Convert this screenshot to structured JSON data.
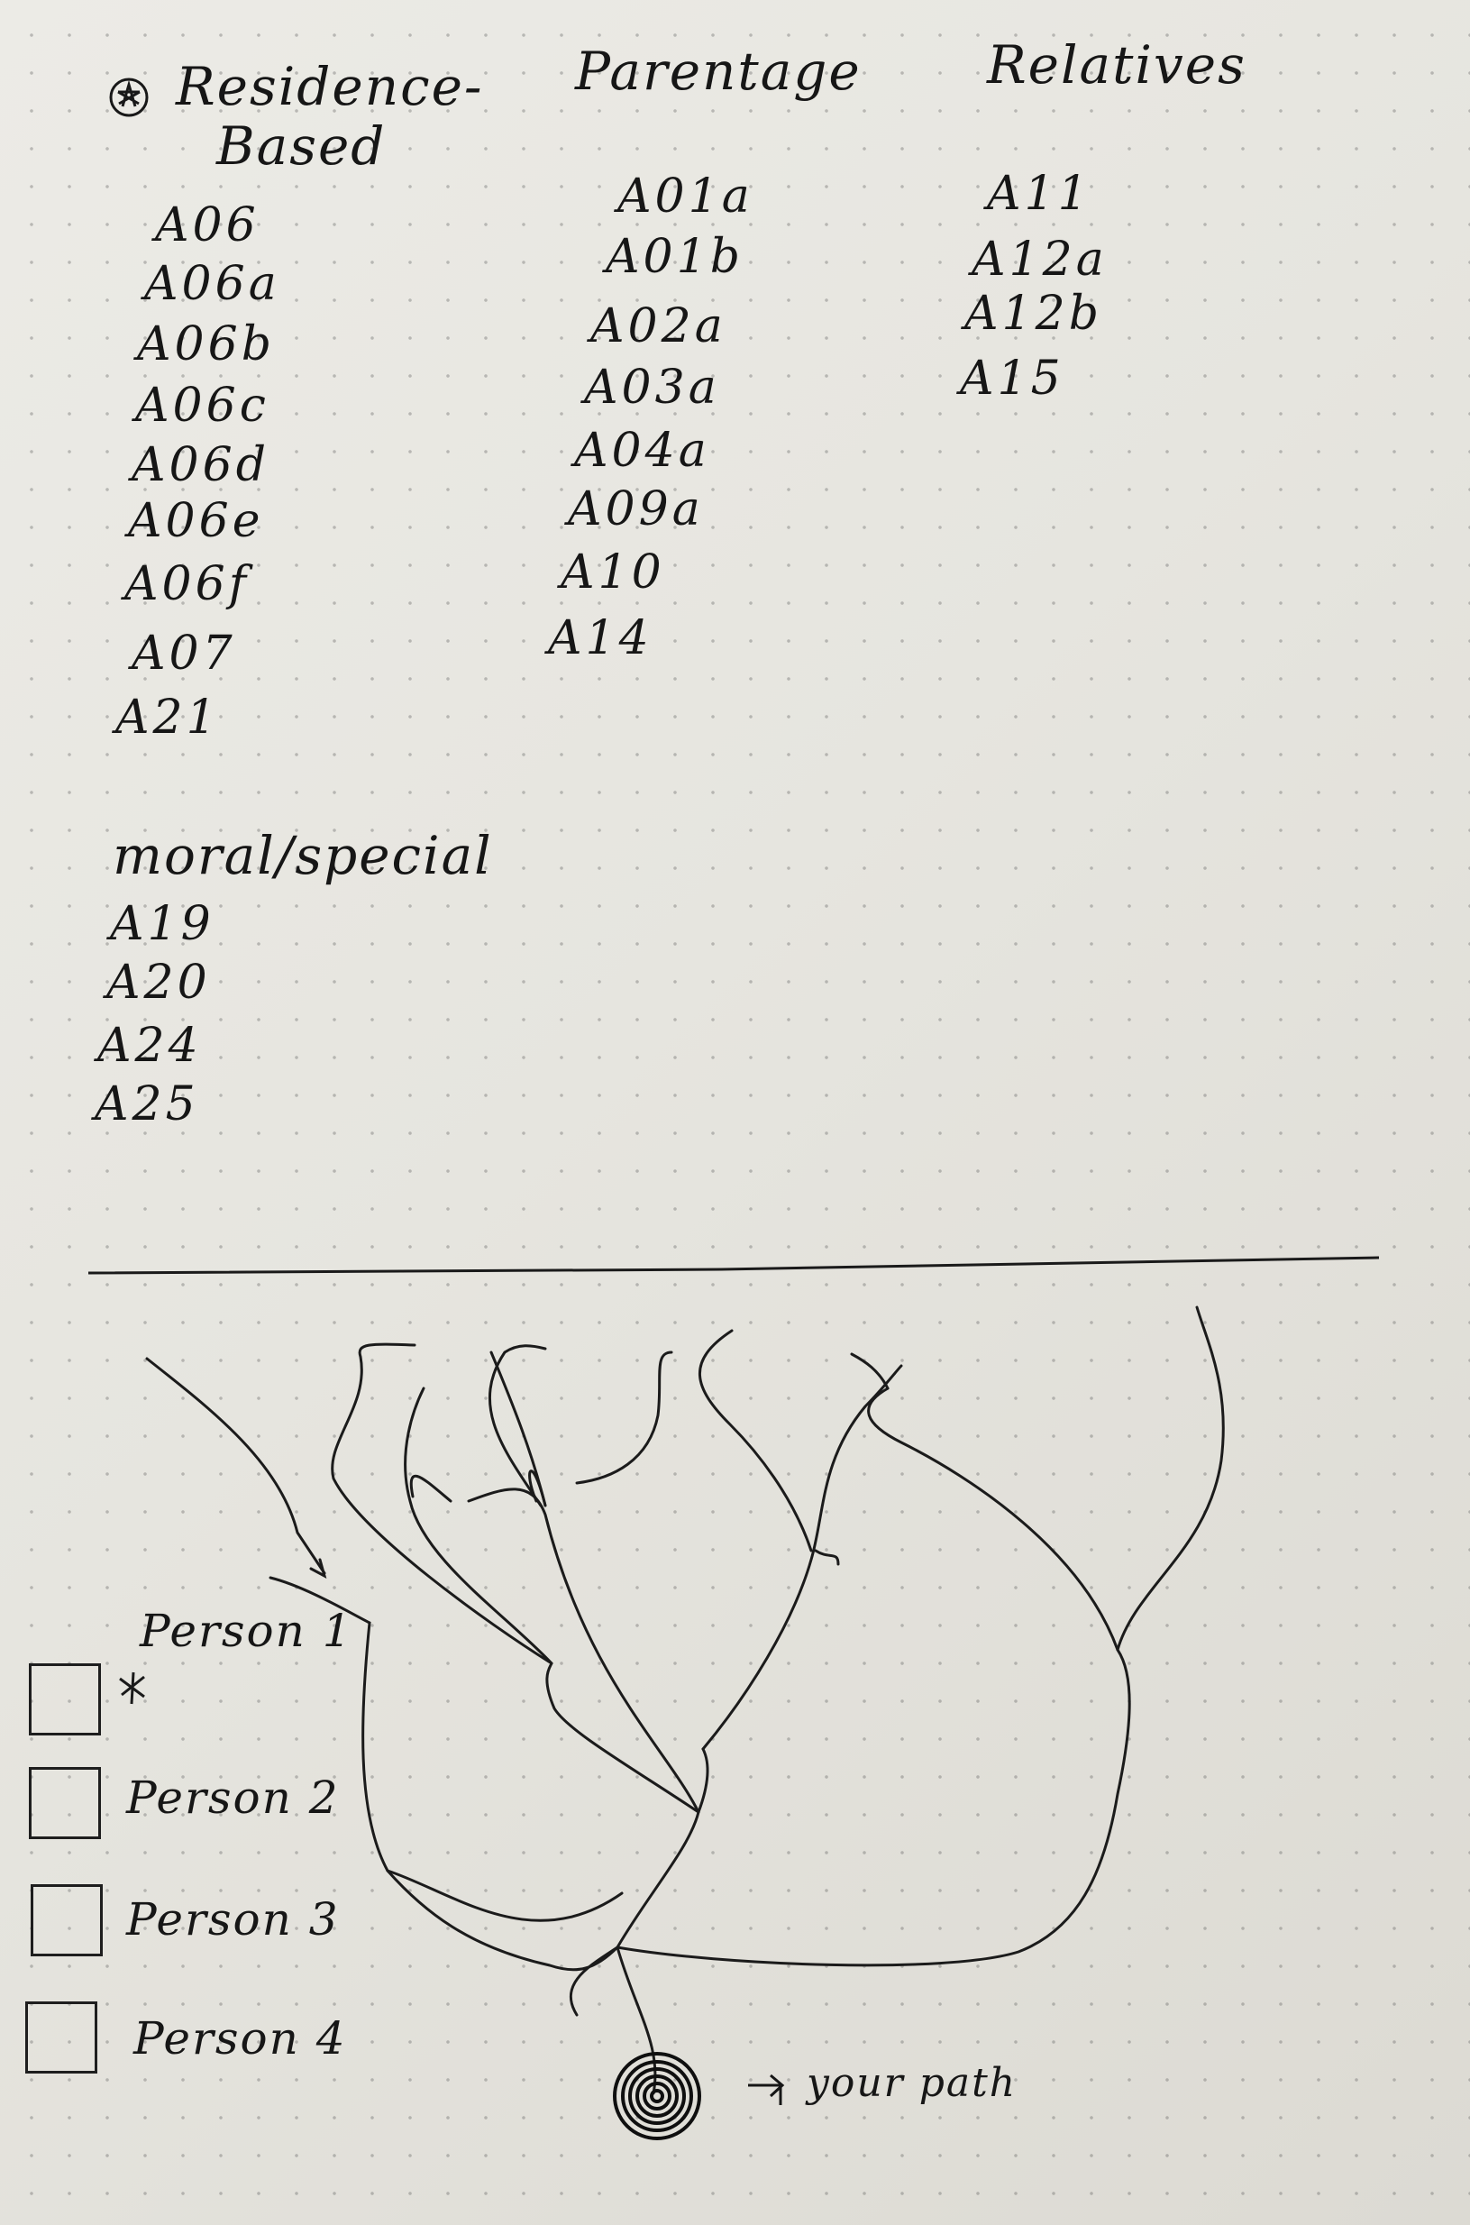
{
  "headers": {
    "residence_line1": "Residence-",
    "residence_line2": "Based",
    "parentage": "Parentage",
    "relatives": "Relatives"
  },
  "residence_based": [
    "A06",
    "A06a",
    "A06b",
    "A06c",
    "A06d",
    "A06e",
    "A06f",
    "A07",
    "A21"
  ],
  "parentage": [
    "A01a",
    "A01b",
    "A02a",
    "A03a",
    "A04a",
    "A09a",
    "A10",
    "A14"
  ],
  "relatives": [
    "A11",
    "A12a",
    "A12b",
    "A15"
  ],
  "moral_special": {
    "title": "moral/special",
    "items": [
      "A19",
      "A20",
      "A24",
      "A25"
    ]
  },
  "checklist": [
    "Person 1",
    "Person 2",
    "Person 3",
    "Person 4"
  ],
  "path_label": "your path"
}
